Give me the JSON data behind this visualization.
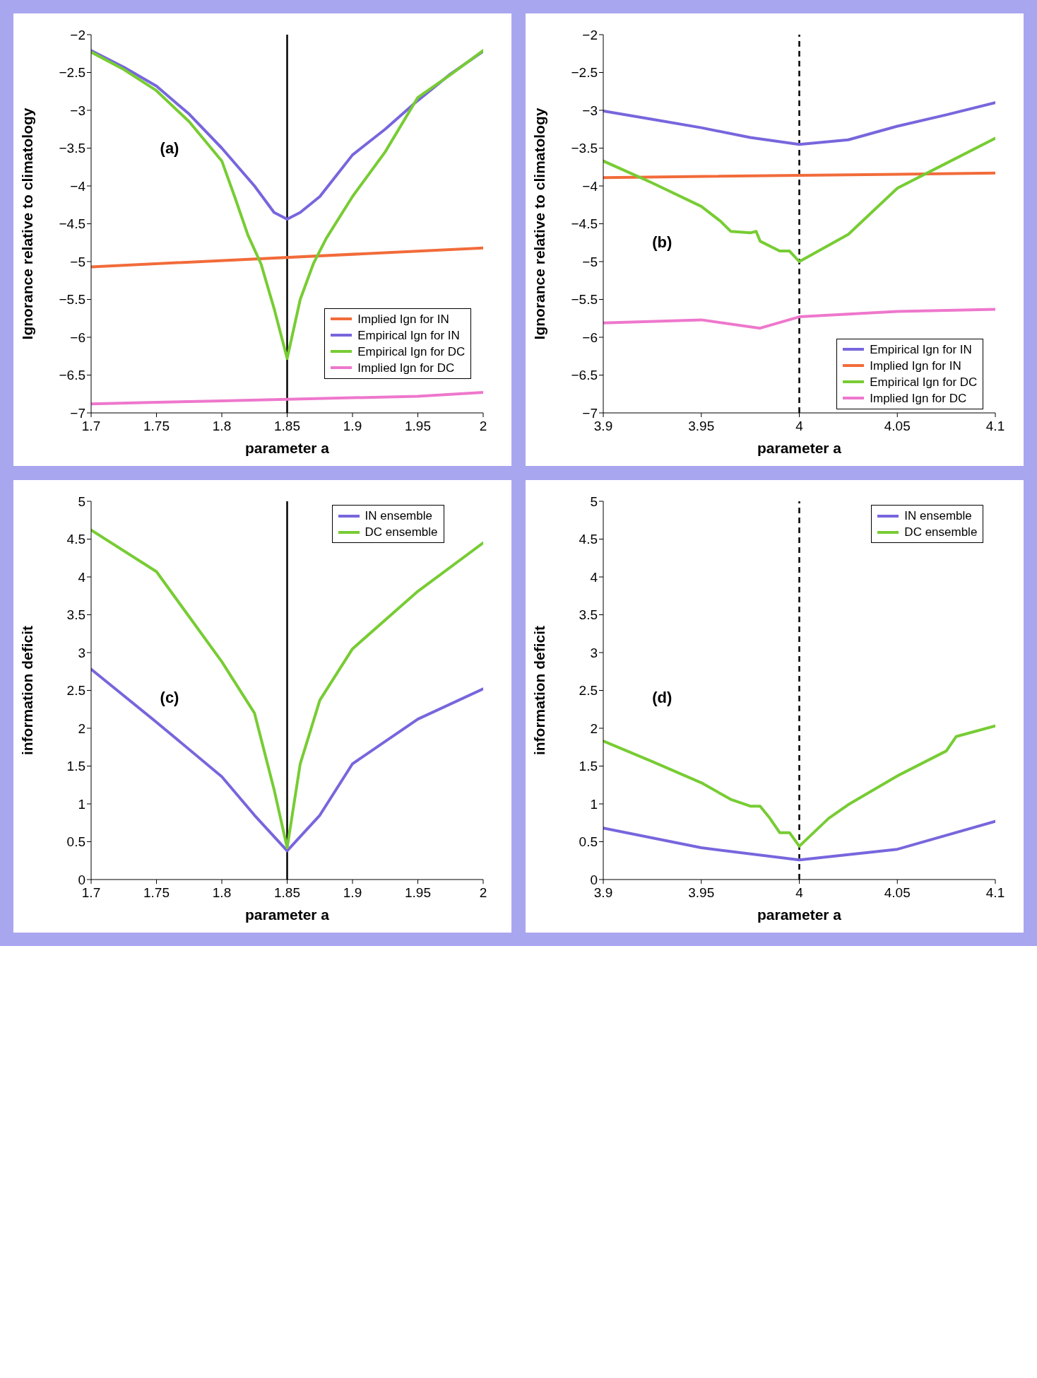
{
  "chart_data": [
    {
      "type": "line",
      "xlabel": "parameter a",
      "ylabel": "Ignorance relative to climatology",
      "annotations": [
        "(a)"
      ],
      "xlim": [
        1.7,
        2
      ],
      "xticks": [
        1.7,
        1.75,
        1.8,
        1.85,
        1.9,
        1.95,
        2
      ],
      "ylim": [
        -7,
        -2
      ],
      "yticks": [
        {
          "value": -7,
          "label": "−7"
        },
        {
          "value": -6.5,
          "label": "−6.5"
        },
        {
          "value": -6,
          "label": "−6"
        },
        {
          "value": -5.5,
          "label": "−5.5"
        },
        {
          "value": -5,
          "label": "−5"
        },
        {
          "value": -4.5,
          "label": "−4.5"
        },
        {
          "value": -4,
          "label": "−4"
        },
        {
          "value": -3.5,
          "label": "−3.5"
        },
        {
          "value": -3,
          "label": "−3"
        },
        {
          "value": -2.5,
          "label": "−2.5"
        },
        {
          "value": -2,
          "label": "−2"
        }
      ],
      "grid": false,
      "legend": "bottom right",
      "line_style": "solid",
      "marker": "none",
      "ref_lines": [
        {
          "axis": "x",
          "value": 1.85,
          "color": "#000000",
          "line_style": "solid"
        }
      ],
      "series": [
        {
          "name": "Implied Ign for IN",
          "color": "#f26b3a",
          "x": [
            1.7,
            2.0
          ],
          "values": [
            -5.07,
            -4.82
          ]
        },
        {
          "name": "Empirical Ign for IN",
          "color": "#7766dd",
          "x": [
            1.7,
            1.725,
            1.75,
            1.775,
            1.8,
            1.825,
            1.84,
            1.85,
            1.86,
            1.875,
            1.9,
            1.925,
            1.95,
            1.975,
            2.0
          ],
          "values": [
            -2.21,
            -2.43,
            -2.68,
            -3.05,
            -3.5,
            -4.0,
            -4.35,
            -4.44,
            -4.35,
            -4.14,
            -3.59,
            -3.25,
            -2.87,
            -2.52,
            -2.22
          ]
        },
        {
          "name": "Empirical Ign for DC",
          "color": "#77cc33",
          "x": [
            1.7,
            1.725,
            1.75,
            1.775,
            1.8,
            1.81,
            1.82,
            1.83,
            1.84,
            1.85,
            1.86,
            1.87,
            1.88,
            1.9,
            1.925,
            1.95,
            1.975,
            2.0
          ],
          "values": [
            -2.23,
            -2.46,
            -2.74,
            -3.15,
            -3.67,
            -4.15,
            -4.65,
            -5.03,
            -5.62,
            -6.28,
            -5.5,
            -5.03,
            -4.69,
            -4.14,
            -3.55,
            -2.83,
            -2.53,
            -2.21
          ]
        },
        {
          "name": "Implied Ign for DC",
          "color": "#ee77cc",
          "x": [
            1.7,
            1.75,
            1.8,
            1.85,
            1.9,
            1.95,
            2.0
          ],
          "values": [
            -6.88,
            -6.86,
            -6.84,
            -6.82,
            -6.8,
            -6.78,
            -6.73
          ]
        }
      ]
    },
    {
      "type": "line",
      "xlabel": "parameter a",
      "ylabel": "Ignorance relative to climatology",
      "annotations": [
        "(b)"
      ],
      "xlim": [
        3.9,
        4.1
      ],
      "xticks": [
        3.9,
        3.95,
        4,
        4.05,
        4.1
      ],
      "ylim": [
        -7,
        -2
      ],
      "yticks": [
        {
          "value": -7,
          "label": "−7"
        },
        {
          "value": -6.5,
          "label": "−6.5"
        },
        {
          "value": -6,
          "label": "−6"
        },
        {
          "value": -5.5,
          "label": "−5.5"
        },
        {
          "value": -5,
          "label": "−5"
        },
        {
          "value": -4.5,
          "label": "−4.5"
        },
        {
          "value": -4,
          "label": "−4"
        },
        {
          "value": -3.5,
          "label": "−3.5"
        },
        {
          "value": -3,
          "label": "−3"
        },
        {
          "value": -2.5,
          "label": "−2.5"
        },
        {
          "value": -2,
          "label": "−2"
        }
      ],
      "grid": false,
      "legend": "bottom right",
      "line_style": "solid",
      "marker": "none",
      "ref_lines": [
        {
          "axis": "x",
          "value": 4,
          "color": "#000000",
          "line_style": "dashed"
        }
      ],
      "series": [
        {
          "name": "Empirical Ign for IN",
          "color": "#7766dd",
          "x": [
            3.9,
            3.925,
            3.95,
            3.975,
            4.0,
            4.025,
            4.05,
            4.075,
            4.1
          ],
          "values": [
            -3.01,
            -3.12,
            -3.23,
            -3.36,
            -3.45,
            -3.39,
            -3.21,
            -3.06,
            -2.9
          ]
        },
        {
          "name": "Implied Ign for IN",
          "color": "#f26b3a",
          "x": [
            3.9,
            4.1
          ],
          "values": [
            -3.89,
            -3.83
          ]
        },
        {
          "name": "Empirical Ign for DC",
          "color": "#77cc33",
          "x": [
            3.9,
            3.925,
            3.95,
            3.96,
            3.965,
            3.975,
            3.978,
            3.98,
            3.99,
            3.995,
            4.0,
            4.025,
            4.05,
            4.075,
            4.1
          ],
          "values": [
            -3.67,
            -3.96,
            -4.27,
            -4.47,
            -4.6,
            -4.62,
            -4.6,
            -4.73,
            -4.86,
            -4.86,
            -5.0,
            -4.64,
            -4.03,
            -3.7,
            -3.37
          ]
        },
        {
          "name": "Implied Ign for DC",
          "color": "#ee77cc",
          "x": [
            3.9,
            3.95,
            3.98,
            4.0,
            4.05,
            4.1
          ],
          "values": [
            -5.81,
            -5.77,
            -5.88,
            -5.73,
            -5.66,
            -5.63
          ]
        }
      ]
    },
    {
      "type": "line",
      "xlabel": "parameter a",
      "ylabel": "information deficit",
      "annotations": [
        "(c)"
      ],
      "xlim": [
        1.7,
        2
      ],
      "xticks": [
        1.7,
        1.75,
        1.8,
        1.85,
        1.9,
        1.95,
        2
      ],
      "ylim": [
        0,
        5
      ],
      "yticks": [
        0,
        0.5,
        1,
        1.5,
        2,
        2.5,
        3,
        3.5,
        4,
        4.5,
        5
      ],
      "grid": false,
      "legend": "top right",
      "line_style": "solid",
      "marker": "none",
      "ref_lines": [
        {
          "axis": "x",
          "value": 1.85,
          "color": "#000000",
          "line_style": "solid"
        }
      ],
      "series": [
        {
          "name": "IN ensemble",
          "color": "#7766dd",
          "x": [
            1.7,
            1.75,
            1.8,
            1.825,
            1.85,
            1.875,
            1.9,
            1.95,
            2.0
          ],
          "values": [
            2.78,
            2.08,
            1.36,
            0.85,
            0.38,
            0.85,
            1.53,
            2.12,
            2.52
          ]
        },
        {
          "name": "DC ensemble",
          "color": "#77cc33",
          "x": [
            1.7,
            1.75,
            1.8,
            1.825,
            1.84,
            1.85,
            1.86,
            1.875,
            1.9,
            1.95,
            2.0
          ],
          "values": [
            4.62,
            4.07,
            2.88,
            2.2,
            1.19,
            0.42,
            1.53,
            2.37,
            3.05,
            3.81,
            4.45
          ]
        }
      ]
    },
    {
      "type": "line",
      "xlabel": "parameter a",
      "ylabel": "information deficit",
      "annotations": [
        "(d)"
      ],
      "xlim": [
        3.9,
        4.1
      ],
      "xticks": [
        3.9,
        3.95,
        4,
        4.05,
        4.1
      ],
      "ylim": [
        0,
        5
      ],
      "yticks": [
        0,
        0.5,
        1,
        1.5,
        2,
        2.5,
        3,
        3.5,
        4,
        4.5,
        5
      ],
      "grid": false,
      "legend": "top right",
      "line_style": "solid",
      "marker": "none",
      "ref_lines": [
        {
          "axis": "x",
          "value": 4,
          "color": "#000000",
          "line_style": "dashed"
        }
      ],
      "series": [
        {
          "name": "IN ensemble",
          "color": "#7766dd",
          "x": [
            3.9,
            3.95,
            4.0,
            4.05,
            4.1
          ],
          "values": [
            0.68,
            0.42,
            0.26,
            0.4,
            0.77
          ]
        },
        {
          "name": "DC ensemble",
          "color": "#77cc33",
          "x": [
            3.9,
            3.925,
            3.95,
            3.965,
            3.975,
            3.98,
            3.985,
            3.99,
            3.995,
            4.0,
            4.015,
            4.025,
            4.05,
            4.075,
            4.08,
            4.1
          ],
          "values": [
            1.83,
            1.56,
            1.28,
            1.06,
            0.97,
            0.97,
            0.81,
            0.62,
            0.62,
            0.44,
            0.81,
            0.99,
            1.37,
            1.7,
            1.89,
            2.03
          ]
        }
      ]
    }
  ]
}
